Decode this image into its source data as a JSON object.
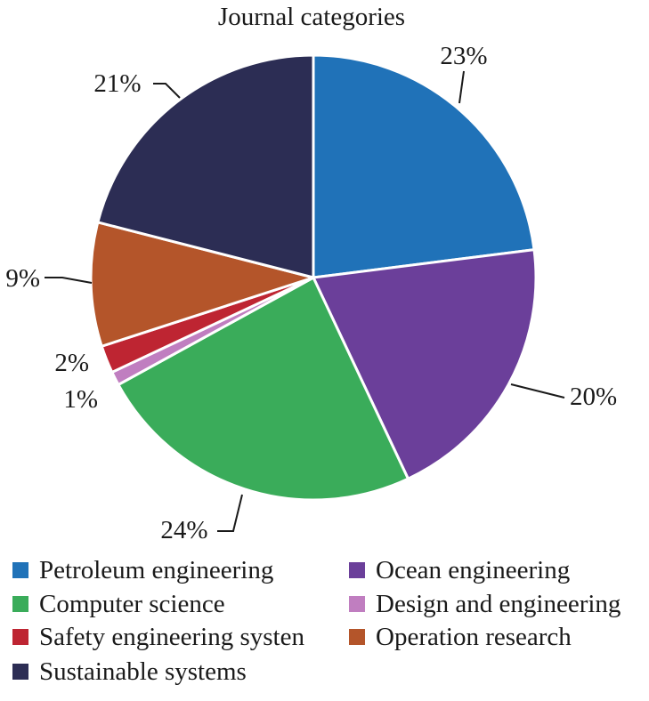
{
  "chart_data": {
    "type": "pie",
    "title": "Journal categories",
    "slices": [
      {
        "label": "Petroleum engineering",
        "value": 23,
        "value_label": "23%",
        "color": "#2072b8"
      },
      {
        "label": "Ocean engineering",
        "value": 20,
        "value_label": "20%",
        "color": "#6b3f9a"
      },
      {
        "label": "Computer science",
        "value": 24,
        "value_label": "24%",
        "color": "#3aac5a"
      },
      {
        "label": "Design and engineering",
        "value": 1,
        "value_label": "1%",
        "color": "#c07ec0"
      },
      {
        "label": "Safety engineering systen",
        "value": 2,
        "value_label": "2%",
        "color": "#be2532"
      },
      {
        "label": "Operation research",
        "value": 9,
        "value_label": "9%",
        "color": "#b4552a"
      },
      {
        "label": "Sustainable systems",
        "value": 21,
        "value_label": "21%",
        "color": "#2c2d54"
      }
    ],
    "legend_position": "bottom"
  }
}
